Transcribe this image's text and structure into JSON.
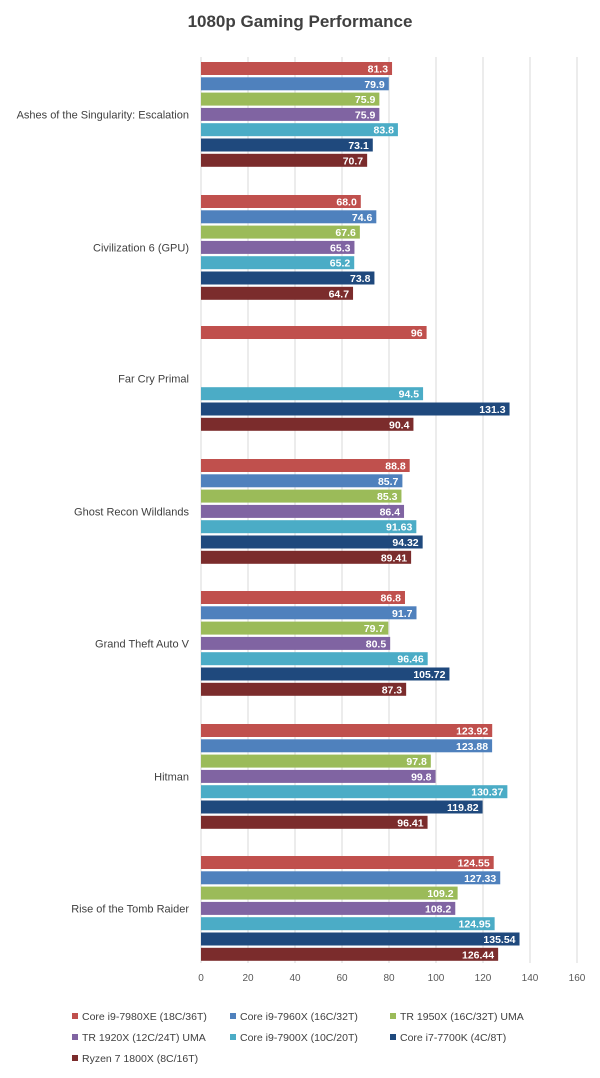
{
  "chart_data": {
    "type": "bar",
    "orientation": "horizontal",
    "title": "1080p Gaming  Performance",
    "xlabel": "",
    "ylabel": "",
    "xlim": [
      0,
      160
    ],
    "x_ticks": [
      0,
      20,
      40,
      60,
      80,
      100,
      120,
      140,
      160
    ],
    "grid": "vertical",
    "legend_position": "bottom",
    "categories": [
      "Ashes of the Singularity: Escalation",
      "Civilization 6 (GPU)",
      "Far Cry Primal",
      "Ghost Recon Wildlands",
      "Grand Theft Auto V",
      "Hitman",
      "Rise of the Tomb Raider"
    ],
    "series": [
      {
        "name": "Core i9-7980XE (18C/36T)",
        "color": "#c0504d",
        "values": [
          81.3,
          68.0,
          96,
          88.8,
          86.8,
          123.92,
          124.55
        ],
        "labels": [
          "81.3",
          "68.0",
          "96",
          "88.8",
          "86.8",
          "123.92",
          "124.55"
        ]
      },
      {
        "name": "Core i9-7960X (16C/32T)",
        "color": "#4f81bd",
        "values": [
          79.9,
          74.6,
          null,
          85.7,
          91.7,
          123.88,
          127.33
        ],
        "labels": [
          "79.9",
          "74.6",
          "",
          "85.7",
          "91.7",
          "123.88",
          "127.33"
        ]
      },
      {
        "name": "TR 1950X (16C/32T) UMA",
        "color": "#9bbb59",
        "values": [
          75.9,
          67.6,
          null,
          85.3,
          79.7,
          97.8,
          109.2
        ],
        "labels": [
          "75.9",
          "67.6",
          "",
          "85.3",
          "79.7",
          "97.8",
          "109.2"
        ]
      },
      {
        "name": "TR 1920X (12C/24T) UMA",
        "color": "#8064a2",
        "values": [
          75.9,
          65.3,
          null,
          86.4,
          80.5,
          99.8,
          108.2
        ],
        "labels": [
          "75.9",
          "65.3",
          "",
          "86.4",
          "80.5",
          "99.8",
          "108.2"
        ]
      },
      {
        "name": "Core i9-7900X (10C/20T)",
        "color": "#4bacc6",
        "values": [
          83.8,
          65.2,
          94.5,
          91.63,
          96.46,
          130.37,
          124.95
        ],
        "labels": [
          "83.8",
          "65.2",
          "94.5",
          "91.63",
          "96.46",
          "130.37",
          "124.95"
        ]
      },
      {
        "name": "Core i7-7700K (4C/8T)",
        "color": "#1f497d",
        "values": [
          73.1,
          73.8,
          131.3,
          94.32,
          105.72,
          119.82,
          135.54
        ],
        "labels": [
          "73.1",
          "73.8",
          "131.3",
          "94.32",
          "105.72",
          "119.82",
          "135.54"
        ]
      },
      {
        "name": "Ryzen 7 1800X (8C/16T)",
        "color": "#7b2c2c",
        "values": [
          70.7,
          64.7,
          90.4,
          89.41,
          87.3,
          96.41,
          126.44
        ],
        "labels": [
          "70.7",
          "64.7",
          "90.4",
          "89.41",
          "87.3",
          "96.41",
          "126.44"
        ]
      }
    ]
  }
}
